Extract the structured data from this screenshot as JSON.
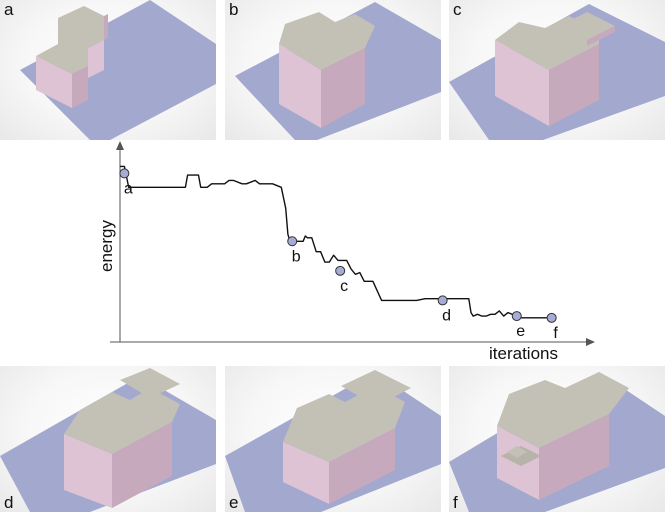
{
  "panels": [
    {
      "id": "p-a",
      "label": "a"
    },
    {
      "id": "p-b",
      "label": "b"
    },
    {
      "id": "p-c",
      "label": "c"
    },
    {
      "id": "p-d",
      "label": "d"
    },
    {
      "id": "p-e",
      "label": "e"
    },
    {
      "id": "p-f",
      "label": "f"
    }
  ],
  "colors": {
    "ground": "#a3a8cf",
    "roof": "#c3c0b6",
    "side_light": "#ddc3d4",
    "side_dark": "#c6a9bd",
    "curve": "#111111",
    "marker": "#a5acd6"
  },
  "chart_data": {
    "type": "line",
    "title": "",
    "xlabel": "iterations",
    "ylabel": "energy",
    "xlim": [
      0,
      100
    ],
    "ylim": [
      0,
      100
    ],
    "grid": false,
    "series": [
      {
        "x": [
          0,
          1,
          2,
          5,
          8,
          12,
          15,
          15.5,
          18,
          18.5,
          20,
          21,
          24,
          25,
          26,
          28,
          29,
          31,
          32,
          33,
          34,
          35,
          37,
          38,
          38.5,
          39,
          39.5,
          40,
          41,
          42,
          42.5,
          43,
          44,
          45,
          46,
          47,
          48,
          49,
          50,
          51,
          52,
          53,
          54,
          55,
          56,
          58,
          60,
          62,
          64,
          66,
          68,
          70,
          72,
          74,
          76,
          78,
          80,
          80.5,
          81,
          82,
          83,
          84,
          85,
          86,
          87,
          88,
          89,
          90,
          91,
          92,
          94,
          96,
          98
        ],
        "y": [
          94,
          94,
          82,
          82,
          82,
          82,
          82,
          89,
          89,
          82,
          82,
          84,
          84,
          86,
          86,
          84,
          84,
          86,
          84,
          84,
          84,
          84,
          82,
          70,
          55,
          51,
          51,
          51,
          51,
          51,
          54,
          53,
          53,
          45,
          45,
          39,
          39,
          43,
          40,
          40,
          40,
          35,
          32,
          33,
          28,
          28,
          17,
          17,
          17,
          17,
          17,
          18,
          18,
          18,
          18,
          18,
          18,
          10,
          8,
          9,
          8,
          8,
          9,
          9,
          11,
          8,
          10,
          9,
          7,
          7,
          7,
          7,
          7
        ]
      }
    ],
    "markers": [
      {
        "label": "a",
        "x": 1,
        "y": 90
      },
      {
        "label": "b",
        "x": 39.5,
        "y": 51
      },
      {
        "label": "c",
        "x": 50.5,
        "y": 34
      },
      {
        "label": "d",
        "x": 74,
        "y": 17
      },
      {
        "label": "e",
        "x": 91,
        "y": 8
      },
      {
        "label": "f",
        "x": 99,
        "y": 7
      }
    ]
  }
}
